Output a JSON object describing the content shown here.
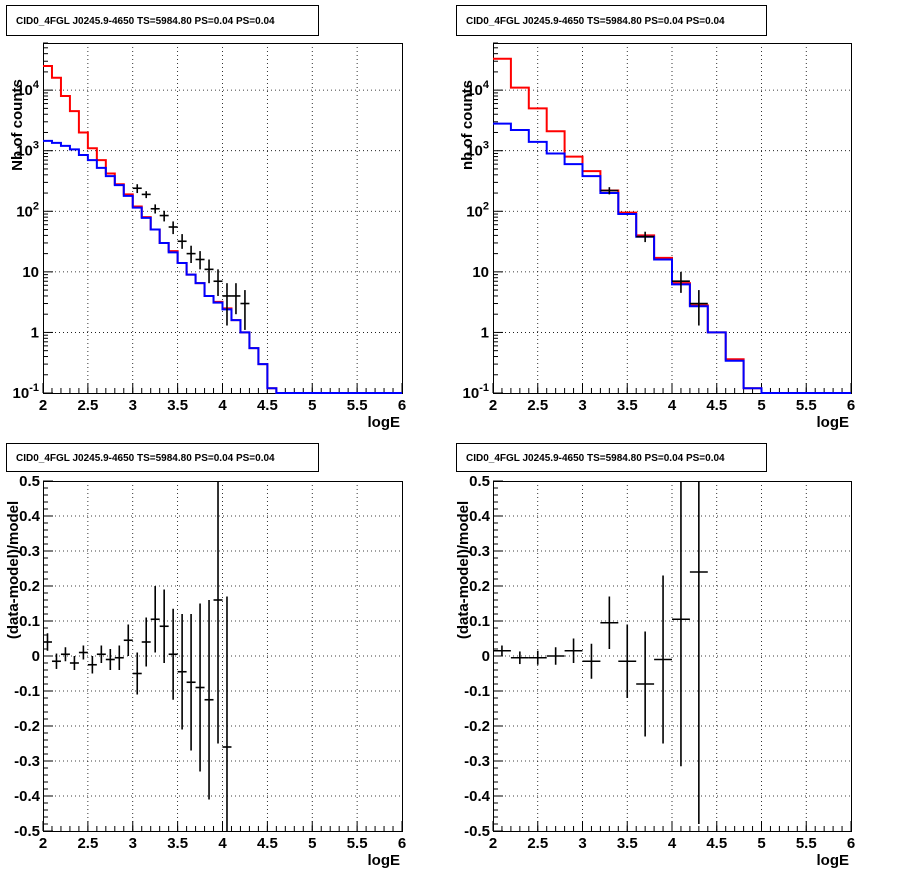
{
  "chart_data": [
    {
      "type": "histogram-step",
      "title": "CID0_4FGL J0245.9-4650 TS=5984.80 PS=0.04 PS=0.04",
      "xlabel": "logE",
      "ylabel": "Nb of counts",
      "xlim": [
        2,
        6
      ],
      "ylim": [
        0.1,
        60000
      ],
      "yscale": "log",
      "grid": true,
      "xticks": [
        "2",
        "2.5",
        "3",
        "3.5",
        "4",
        "4.5",
        "5",
        "5.5",
        "6"
      ],
      "yticks": [
        {
          "base": "10",
          "exp": "-1",
          "value": 0.1
        },
        {
          "base": "1",
          "exp": "",
          "value": 1
        },
        {
          "base": "10",
          "exp": "",
          "value": 10
        },
        {
          "base": "10",
          "exp": "2",
          "value": 100
        },
        {
          "base": "10",
          "exp": "3",
          "value": 1000
        },
        {
          "base": "10",
          "exp": "4",
          "value": 10000
        }
      ],
      "bin_edges": [
        2.0,
        2.1,
        2.2,
        2.3,
        2.4,
        2.5,
        2.6,
        2.7,
        2.8,
        2.9,
        3.0,
        3.1,
        3.2,
        3.3,
        3.4,
        3.5,
        3.6,
        3.7,
        3.8,
        3.9,
        4.0,
        4.1,
        4.2,
        4.3,
        4.4,
        4.5,
        4.6,
        4.7,
        4.8,
        4.9,
        5.0,
        5.1,
        5.2,
        5.3,
        5.4,
        5.5,
        5.6,
        5.7,
        5.8,
        5.9,
        6.0
      ],
      "series": [
        {
          "color": "#ff0000",
          "values": [
            25000,
            16000,
            8000,
            4500,
            2000,
            1100,
            700,
            420,
            280,
            190,
            120,
            80,
            50,
            30,
            22,
            14,
            9,
            6.5,
            4,
            3.2,
            2.5,
            1.6,
            1.0,
            0.55,
            0.3,
            0.12,
            0.1,
            0.1,
            0.1,
            0.1,
            0.1,
            0.1,
            0.1,
            0.1,
            0.1,
            0.1,
            0.1,
            0.1,
            0.1,
            0.1
          ]
        },
        {
          "color": "#0000ff",
          "values": [
            1450,
            1350,
            1200,
            1050,
            850,
            700,
            520,
            380,
            270,
            180,
            115,
            78,
            50,
            30,
            21,
            14,
            9,
            6.5,
            4,
            3.1,
            2.4,
            1.6,
            1.0,
            0.55,
            0.3,
            0.12,
            0.1,
            0.1,
            0.1,
            0.1,
            0.1,
            0.1,
            0.1,
            0.1,
            0.1,
            0.1,
            0.1,
            0.1,
            0.1,
            0.1
          ]
        }
      ],
      "data_points": [
        {
          "x": 3.05,
          "y": 240,
          "lo": 200,
          "hi": 280
        },
        {
          "x": 3.15,
          "y": 190,
          "lo": 165,
          "hi": 215
        },
        {
          "x": 3.25,
          "y": 110,
          "lo": 92,
          "hi": 130
        },
        {
          "x": 3.35,
          "y": 85,
          "lo": 68,
          "hi": 102
        },
        {
          "x": 3.45,
          "y": 55,
          "lo": 42,
          "hi": 68
        },
        {
          "x": 3.55,
          "y": 32,
          "lo": 24,
          "hi": 42
        },
        {
          "x": 3.65,
          "y": 20,
          "lo": 14,
          "hi": 27
        },
        {
          "x": 3.75,
          "y": 16,
          "lo": 11,
          "hi": 22
        },
        {
          "x": 3.85,
          "y": 11,
          "lo": 6.5,
          "hi": 16
        },
        {
          "x": 3.95,
          "y": 7,
          "lo": 4,
          "hi": 11
        },
        {
          "x": 4.05,
          "y": 4,
          "lo": 1.3,
          "hi": 6.5
        },
        {
          "x": 4.15,
          "y": 4,
          "lo": 2,
          "hi": 6.5
        },
        {
          "x": 4.25,
          "y": 3,
          "lo": 1.1,
          "hi": 5
        }
      ]
    },
    {
      "type": "histogram-step",
      "title": "CID0_4FGL J0245.9-4650 TS=5984.80 PS=0.04 PS=0.04",
      "xlabel": "logE",
      "ylabel": "nb of counts",
      "xlim": [
        2,
        6
      ],
      "ylim": [
        0.1,
        60000
      ],
      "yscale": "log",
      "grid": true,
      "xticks": [
        "2",
        "2.5",
        "3",
        "3.5",
        "4",
        "4.5",
        "5",
        "5.5",
        "6"
      ],
      "yticks": [
        {
          "base": "10",
          "exp": "-1",
          "value": 0.1
        },
        {
          "base": "1",
          "exp": "",
          "value": 1
        },
        {
          "base": "10",
          "exp": "",
          "value": 10
        },
        {
          "base": "10",
          "exp": "2",
          "value": 100
        },
        {
          "base": "10",
          "exp": "3",
          "value": 1000
        },
        {
          "base": "10",
          "exp": "4",
          "value": 10000
        }
      ],
      "bin_edges": [
        2.0,
        2.2,
        2.4,
        2.6,
        2.8,
        3.0,
        3.2,
        3.4,
        3.6,
        3.8,
        4.0,
        4.2,
        4.4,
        4.6,
        4.8,
        5.0,
        5.2,
        5.4,
        5.6,
        5.8,
        6.0
      ],
      "series": [
        {
          "color": "#ff0000",
          "values": [
            33000,
            11000,
            5000,
            2100,
            800,
            460,
            220,
            95,
            40,
            17,
            6.5,
            2.8,
            1.0,
            0.36,
            0.12,
            0.1,
            0.1,
            0.1,
            0.1,
            0.1
          ]
        },
        {
          "color": "#0000ff",
          "values": [
            2800,
            2200,
            1400,
            900,
            600,
            380,
            200,
            90,
            38,
            16,
            6.2,
            2.7,
            1.0,
            0.34,
            0.12,
            0.1,
            0.1,
            0.1,
            0.1,
            0.1
          ]
        }
      ],
      "data_points": [
        {
          "x": 3.3,
          "y": 220,
          "lo": 190,
          "hi": 250
        },
        {
          "x": 3.7,
          "y": 38,
          "lo": 31,
          "hi": 46
        },
        {
          "x": 4.1,
          "y": 7,
          "lo": 4.5,
          "hi": 10
        },
        {
          "x": 4.3,
          "y": 3,
          "lo": 1.3,
          "hi": 5
        }
      ]
    },
    {
      "type": "scatter-errorbar",
      "title": "CID0_4FGL J0245.9-4650 TS=5984.80 PS=0.04 PS=0.04",
      "xlabel": "logE",
      "ylabel": "(data-model)/model",
      "xlim": [
        2,
        6
      ],
      "ylim": [
        -0.5,
        0.5
      ],
      "grid": true,
      "xticks": [
        "2",
        "2.5",
        "3",
        "3.5",
        "4",
        "4.5",
        "5",
        "5.5",
        "6"
      ],
      "yticks": [
        "-0.5",
        "-0.4",
        "-0.3",
        "-0.2",
        "-0.1",
        "0",
        "0.1",
        "0.2",
        "0.3",
        "0.4",
        "0.5"
      ],
      "xerr": 0.05,
      "points": [
        {
          "x": 2.05,
          "y": 0.04,
          "err": 0.025
        },
        {
          "x": 2.15,
          "y": -0.015,
          "err": 0.022
        },
        {
          "x": 2.25,
          "y": 0.005,
          "err": 0.02
        },
        {
          "x": 2.35,
          "y": -0.02,
          "err": 0.02
        },
        {
          "x": 2.45,
          "y": 0.01,
          "err": 0.02
        },
        {
          "x": 2.55,
          "y": -0.025,
          "err": 0.025
        },
        {
          "x": 2.65,
          "y": 0.005,
          "err": 0.025
        },
        {
          "x": 2.75,
          "y": -0.01,
          "err": 0.03
        },
        {
          "x": 2.85,
          "y": -0.005,
          "err": 0.035
        },
        {
          "x": 2.95,
          "y": 0.045,
          "err": 0.045
        },
        {
          "x": 3.05,
          "y": -0.05,
          "err": 0.06
        },
        {
          "x": 3.15,
          "y": 0.04,
          "err": 0.07
        },
        {
          "x": 3.25,
          "y": 0.105,
          "err": 0.095
        },
        {
          "x": 3.35,
          "y": 0.085,
          "err": 0.105
        },
        {
          "x": 3.45,
          "y": 0.005,
          "err": 0.13
        },
        {
          "x": 3.55,
          "y": -0.045,
          "err": 0.165
        },
        {
          "x": 3.65,
          "y": -0.075,
          "err": 0.195
        },
        {
          "x": 3.75,
          "y": -0.09,
          "err": 0.24
        },
        {
          "x": 3.85,
          "y": -0.125,
          "err": 0.285
        },
        {
          "x": 3.95,
          "y": 0.16,
          "err": 0.41
        },
        {
          "x": 4.05,
          "y": -0.26,
          "err": 0.43
        }
      ]
    },
    {
      "type": "scatter-errorbar",
      "title": "CID0_4FGL J0245.9-4650 TS=5984.80 PS=0.04 PS=0.04",
      "xlabel": "logE",
      "ylabel": "(data-model)/model",
      "xlim": [
        2,
        6
      ],
      "ylim": [
        -0.5,
        0.5
      ],
      "grid": true,
      "xticks": [
        "2",
        "2.5",
        "3",
        "3.5",
        "4",
        "4.5",
        "5",
        "5.5",
        "6"
      ],
      "yticks": [
        "-0.5",
        "-0.4",
        "-0.3",
        "-0.2",
        "-0.1",
        "0",
        "0.1",
        "0.2",
        "0.3",
        "0.4",
        "0.5"
      ],
      "xerr": 0.1,
      "points": [
        {
          "x": 2.1,
          "y": 0.015,
          "err": 0.015
        },
        {
          "x": 2.3,
          "y": -0.005,
          "err": 0.018
        },
        {
          "x": 2.5,
          "y": -0.005,
          "err": 0.02
        },
        {
          "x": 2.7,
          "y": 0.0,
          "err": 0.025
        },
        {
          "x": 2.9,
          "y": 0.015,
          "err": 0.035
        },
        {
          "x": 3.1,
          "y": -0.015,
          "err": 0.05
        },
        {
          "x": 3.3,
          "y": 0.095,
          "err": 0.075
        },
        {
          "x": 3.5,
          "y": -0.015,
          "err": 0.105
        },
        {
          "x": 3.7,
          "y": -0.08,
          "err": 0.15
        },
        {
          "x": 3.9,
          "y": -0.01,
          "err": 0.24
        },
        {
          "x": 4.1,
          "y": 0.105,
          "err": 0.42
        },
        {
          "x": 4.3,
          "y": 0.24,
          "err": 0.72
        }
      ]
    }
  ]
}
